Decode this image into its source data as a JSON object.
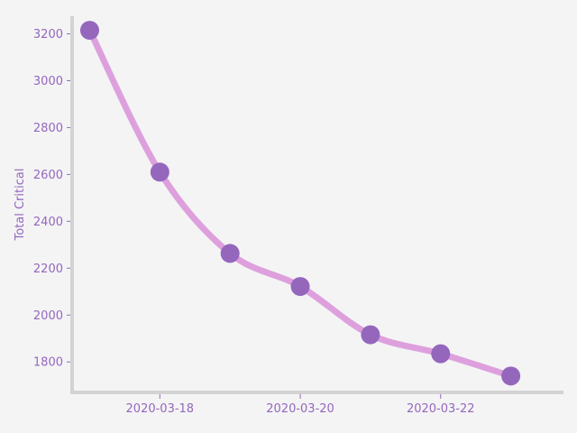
{
  "chart_data": {
    "type": "line",
    "title": "",
    "xlabel": "",
    "ylabel": "Total Critical",
    "x": [
      "2020-03-17",
      "2020-03-18",
      "2020-03-19",
      "2020-03-20",
      "2020-03-21",
      "2020-03-22",
      "2020-03-23"
    ],
    "series": [
      {
        "values": [
          3215,
          2610,
          2263,
          2122,
          1916,
          1835,
          1740
        ]
      }
    ],
    "x_ticks": [
      "2020-03-18",
      "2020-03-20",
      "2020-03-22"
    ],
    "y_ticks": [
      1800,
      2000,
      2200,
      2400,
      2600,
      2800,
      3000,
      3200
    ],
    "xlim": [
      "2020-03-16 18:00",
      "2020-03-23 18:00"
    ],
    "ylim": [
      1670,
      3275
    ],
    "grid": false,
    "line_style": "smoothed",
    "colors": {
      "line": "#dda0dd",
      "marker": "#9467bd",
      "text": "#9467bd",
      "axis": "#d3d3d3",
      "background": "#f4f4f5"
    }
  }
}
